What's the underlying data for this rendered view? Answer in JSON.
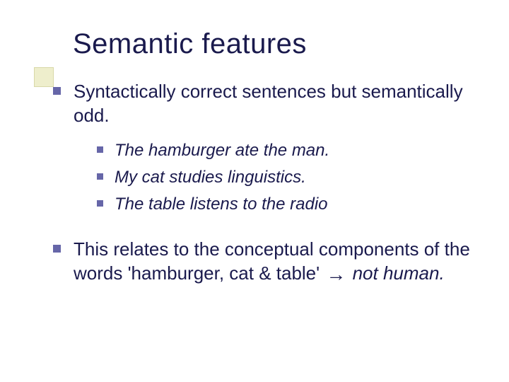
{
  "title": "Semantic features",
  "colors": {
    "text": "#1a1a4d",
    "bullet": "#6666a8",
    "accent_box_fill": "#eeeecc",
    "accent_box_border": "#d8d8a8",
    "background": "#ffffff"
  },
  "typography": {
    "title_fontsize": 40,
    "body_fontsize": 26,
    "sub_fontsize": 24,
    "font_family": "Verdana"
  },
  "bullets": [
    {
      "text": "Syntactically correct sentences but semantically odd.",
      "sub": [
        "The hamburger ate the man.",
        "My cat studies linguistics.",
        "The table listens to the radio"
      ]
    },
    {
      "parts": {
        "pre": "This relates to the conceptual components of the words 'hamburger, cat & table' ",
        "arrow": "→",
        "post_italic": "not human."
      }
    }
  ]
}
